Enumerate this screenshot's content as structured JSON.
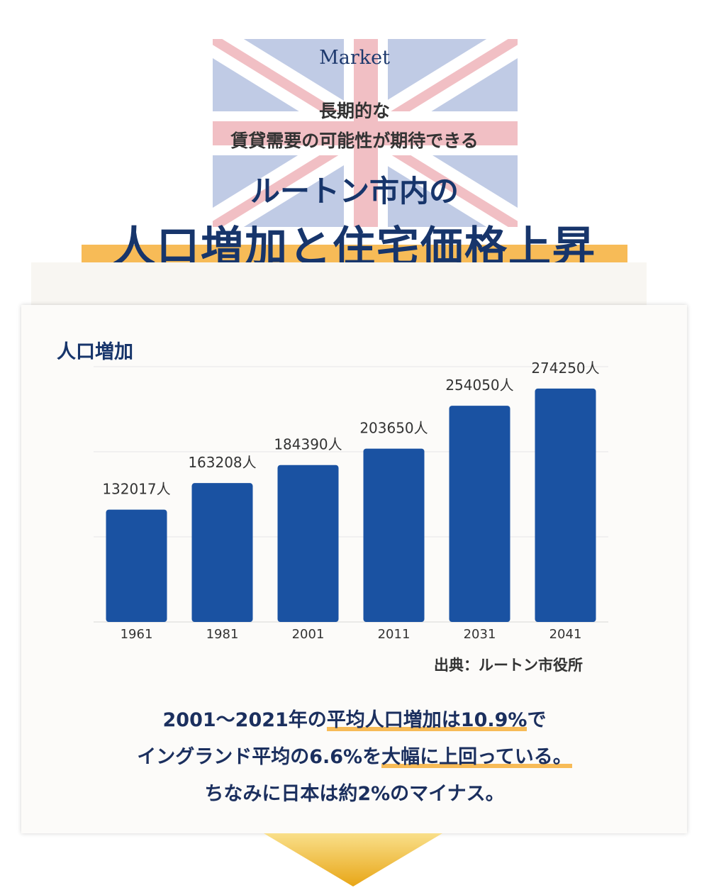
{
  "header": {
    "eyebrow": "Market",
    "subtitle_line1": "長期的な",
    "subtitle_line2": "賃貸需要の可能性が期待できる",
    "title_line1": "ルートン市内の",
    "title_line2": "人口増加と住宅価格上昇"
  },
  "chart_data": {
    "type": "bar",
    "title": "人口増加",
    "categories": [
      "1961",
      "1981",
      "2001",
      "2011",
      "2031",
      "2041"
    ],
    "values": [
      132017,
      163208,
      184390,
      203650,
      254050,
      274250
    ],
    "value_labels": [
      "132017人",
      "163208人",
      "184390人",
      "203650人",
      "254050人",
      "274250人"
    ],
    "bar_color": "#1a52a2",
    "grid": true,
    "ylim": [
      0,
      300000
    ]
  },
  "source": "出典：ルートン市役所",
  "summary": {
    "line1_a": "2001〜2021年の",
    "line1_b": "平均人口増加は10.9%",
    "line1_c": "で",
    "line2_a": "イングランド平均の6.6%を",
    "line2_b": "大幅に上回っている。",
    "line3": "ちなみに日本は約2%のマイナス。"
  },
  "colors": {
    "navy": "#17356b",
    "accent": "#f7bb57",
    "bar": "#1a52a2"
  }
}
